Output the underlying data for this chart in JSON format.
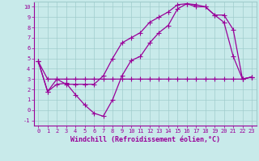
{
  "title": "",
  "xlabel": "Windchill (Refroidissement éolien,°C)",
  "ylabel": "",
  "bg_color": "#c8eaea",
  "grid_color": "#a0cccc",
  "line_color": "#990099",
  "xlim": [
    -0.5,
    23.5
  ],
  "ylim": [
    -1.5,
    10.5
  ],
  "xticks": [
    0,
    1,
    2,
    3,
    4,
    5,
    6,
    7,
    8,
    9,
    10,
    11,
    12,
    13,
    14,
    15,
    16,
    17,
    18,
    19,
    20,
    21,
    22,
    23
  ],
  "yticks": [
    -1,
    0,
    1,
    2,
    3,
    4,
    5,
    6,
    7,
    8,
    9,
    10
  ],
  "line1_x": [
    0,
    1,
    2,
    3,
    4,
    5,
    6,
    7,
    8,
    9,
    10,
    11,
    12,
    13,
    14,
    15,
    16,
    17,
    18,
    19,
    20,
    21,
    22,
    23
  ],
  "line1_y": [
    4.7,
    1.8,
    3.0,
    2.5,
    2.5,
    2.5,
    2.5,
    3.3,
    5.0,
    6.5,
    7.0,
    7.5,
    8.5,
    9.0,
    9.5,
    10.2,
    10.3,
    10.0,
    10.0,
    9.2,
    8.5,
    5.2,
    3.0,
    3.2
  ],
  "line2_x": [
    0,
    1,
    2,
    3,
    4,
    5,
    6,
    7,
    8,
    9,
    10,
    11,
    12,
    13,
    14,
    15,
    16,
    17,
    18,
    19,
    20,
    21,
    22,
    23
  ],
  "line2_y": [
    4.7,
    1.8,
    2.5,
    2.6,
    1.5,
    0.5,
    -0.3,
    -0.6,
    1.0,
    3.3,
    4.8,
    5.2,
    6.5,
    7.5,
    8.2,
    9.8,
    10.3,
    10.2,
    10.0,
    9.2,
    9.2,
    7.8,
    3.0,
    3.2
  ],
  "line3_x": [
    0,
    1,
    2,
    3,
    4,
    5,
    6,
    7,
    8,
    9,
    10,
    11,
    12,
    13,
    14,
    15,
    16,
    17,
    18,
    19,
    20,
    21,
    22,
    23
  ],
  "line3_y": [
    4.7,
    3.0,
    3.0,
    3.0,
    3.0,
    3.0,
    3.0,
    3.0,
    3.0,
    3.0,
    3.0,
    3.0,
    3.0,
    3.0,
    3.0,
    3.0,
    3.0,
    3.0,
    3.0,
    3.0,
    3.0,
    3.0,
    3.0,
    3.2
  ],
  "marker": "+",
  "markersize": 4,
  "linewidth": 0.9
}
